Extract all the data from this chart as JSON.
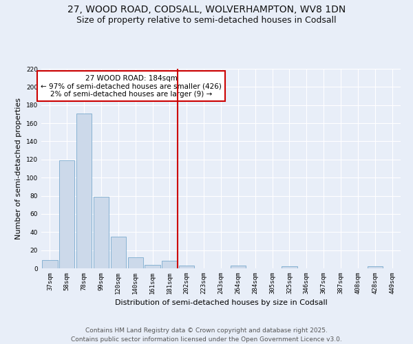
{
  "title1": "27, WOOD ROAD, CODSALL, WOLVERHAMPTON, WV8 1DN",
  "title2": "Size of property relative to semi-detached houses in Codsall",
  "xlabel": "Distribution of semi-detached houses by size in Codsall",
  "ylabel": "Number of semi-detached properties",
  "categories": [
    "37sqm",
    "58sqm",
    "78sqm",
    "99sqm",
    "120sqm",
    "140sqm",
    "161sqm",
    "181sqm",
    "202sqm",
    "223sqm",
    "243sqm",
    "264sqm",
    "284sqm",
    "305sqm",
    "325sqm",
    "346sqm",
    "367sqm",
    "387sqm",
    "408sqm",
    "428sqm",
    "449sqm"
  ],
  "values": [
    9,
    119,
    171,
    79,
    35,
    12,
    4,
    8,
    3,
    0,
    0,
    3,
    0,
    0,
    2,
    0,
    0,
    0,
    0,
    2,
    0
  ],
  "bar_color": "#ccd9ea",
  "bar_edge_color": "#7aaace",
  "vline_color": "#cc0000",
  "annotation_title": "27 WOOD ROAD: 184sqm",
  "annotation_line2": "← 97% of semi-detached houses are smaller (426)",
  "annotation_line3": "2% of semi-detached houses are larger (9) →",
  "annotation_box_color": "#cc0000",
  "annotation_bg": "#ffffff",
  "ylim": [
    0,
    220
  ],
  "yticks": [
    0,
    20,
    40,
    60,
    80,
    100,
    120,
    140,
    160,
    180,
    200,
    220
  ],
  "footer1": "Contains HM Land Registry data © Crown copyright and database right 2025.",
  "footer2": "Contains public sector information licensed under the Open Government Licence v3.0.",
  "bg_color": "#e8eef8",
  "plot_bg_color": "#e8eef8",
  "title_fontsize": 10,
  "subtitle_fontsize": 9,
  "axis_label_fontsize": 8,
  "tick_fontsize": 6.5,
  "footer_fontsize": 6.5
}
